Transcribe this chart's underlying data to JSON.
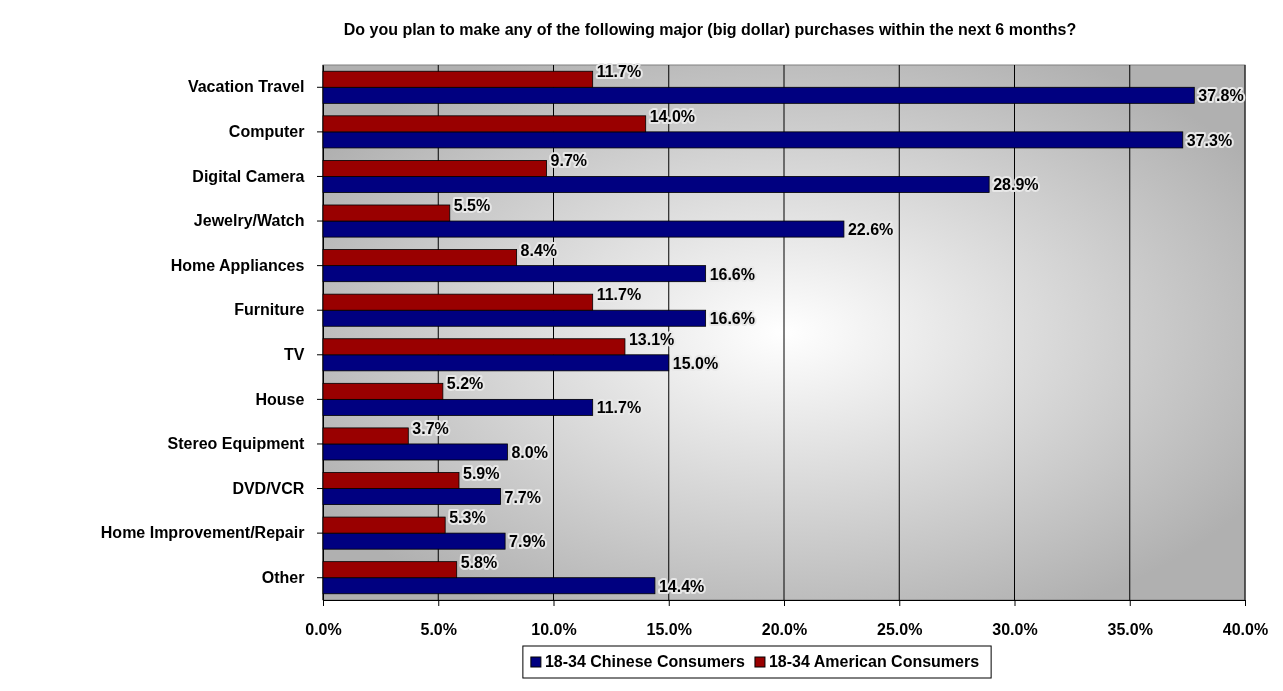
{
  "chart_data": {
    "type": "bar",
    "orientation": "horizontal",
    "title": "Do you plan to make any of the following major (big dollar) purchases within the next 6 months?",
    "categories": [
      "Vacation Travel",
      "Computer",
      "Digital Camera",
      "Jewelry/Watch",
      "Home Appliances",
      "Furniture",
      "TV",
      "House",
      "Stereo Equipment",
      "DVD/VCR",
      "Home Improvement/Repair",
      "Other"
    ],
    "series": [
      {
        "name": "18-34 Chinese Consumers",
        "color": "#000080",
        "values": [
          37.8,
          37.3,
          28.9,
          22.6,
          16.6,
          16.6,
          15.0,
          11.7,
          8.0,
          7.7,
          7.9,
          14.4
        ],
        "value_labels": [
          "37.8%",
          "37.3%",
          "28.9%",
          "22.6%",
          "16.6%",
          "16.6%",
          "15.0%",
          "11.7%",
          "8.0%",
          "7.7%",
          "7.9%",
          "14.4%"
        ]
      },
      {
        "name": "18-34 American Consumers",
        "color": "#990000",
        "values": [
          11.7,
          14.0,
          9.7,
          5.5,
          8.4,
          11.7,
          13.1,
          5.2,
          3.7,
          5.9,
          5.3,
          5.8
        ],
        "value_labels": [
          "11.7%",
          "14.0%",
          "9.7%",
          "5.5%",
          "8.4%",
          "11.7%",
          "13.1%",
          "5.2%",
          "3.7%",
          "5.9%",
          "5.3%",
          "5.8%"
        ]
      }
    ],
    "xlim": [
      0,
      40
    ],
    "xticks": [
      {
        "value": 0,
        "label": "0.0%"
      },
      {
        "value": 5,
        "label": "5.0%"
      },
      {
        "value": 10,
        "label": "10.0%"
      },
      {
        "value": 15,
        "label": "15.0%"
      },
      {
        "value": 20,
        "label": "20.0%"
      },
      {
        "value": 25,
        "label": "25.0%"
      },
      {
        "value": 30,
        "label": "30.0%"
      },
      {
        "value": 35,
        "label": "35.0%"
      },
      {
        "value": 40,
        "label": "40.0%"
      }
    ],
    "grid": "x",
    "legend": "bottom"
  }
}
